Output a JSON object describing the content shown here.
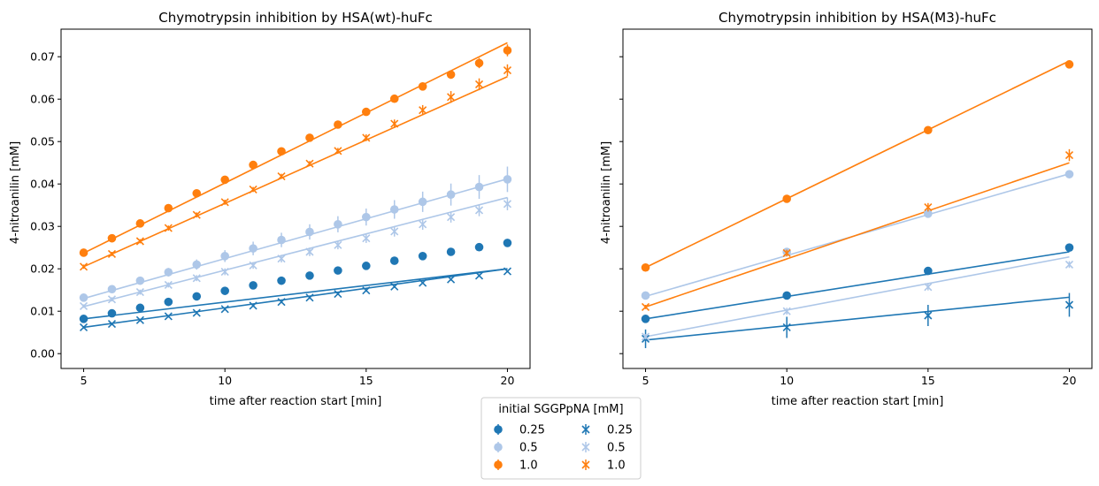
{
  "colors": {
    "c025": "#1f77b4",
    "c05": "#aec7e8",
    "c10": "#ff7f0e"
  },
  "legend": {
    "title": "initial SGGPpNA  [mM]",
    "items": [
      {
        "label": "0.25",
        "marker": "dot",
        "color": "#1f77b4"
      },
      {
        "label": "0.5",
        "marker": "dot",
        "color": "#aec7e8"
      },
      {
        "label": "1.0",
        "marker": "dot",
        "color": "#ff7f0e"
      },
      {
        "label": "0.25",
        "marker": "x",
        "color": "#1f77b4"
      },
      {
        "label": "0.5",
        "marker": "x",
        "color": "#aec7e8"
      },
      {
        "label": "1.0",
        "marker": "x",
        "color": "#ff7f0e"
      }
    ]
  },
  "chart_data": [
    {
      "type": "scatter",
      "title": "Chymotrypsin inhibition by HSA(wt)-huFc",
      "xlabel": "time after reaction start [min]",
      "ylabel": "4-nitroanilin [mM]",
      "xlim": [
        4.2,
        20.8
      ],
      "ylim": [
        -0.0035,
        0.0765
      ],
      "xticks": [
        5,
        10,
        15,
        20
      ],
      "yticks": [
        0.0,
        0.01,
        0.02,
        0.03,
        0.04,
        0.05,
        0.06,
        0.07
      ],
      "ytick_labels": [
        "0.00",
        "0.01",
        "0.02",
        "0.03",
        "0.04",
        "0.05",
        "0.06",
        "0.07"
      ],
      "show_ytick_labels": true,
      "x": [
        5,
        6,
        7,
        8,
        9,
        10,
        11,
        12,
        13,
        14,
        15,
        16,
        17,
        18,
        19,
        20
      ],
      "series": [
        {
          "marker": "dot",
          "color": "#1f77b4",
          "fit": [
            0.0082,
            0.02
          ],
          "values": [
            0.0082,
            0.0095,
            0.0108,
            0.0122,
            0.0135,
            0.0148,
            0.0161,
            0.0172,
            0.0184,
            0.0196,
            0.0207,
            0.0219,
            0.023,
            0.024,
            0.0251,
            0.0261
          ],
          "err": [
            0.0005,
            0.0005,
            0.0005,
            0.0005,
            0.0005,
            0.0005,
            0.0005,
            0.0005,
            0.0005,
            0.0005,
            0.0005,
            0.0005,
            0.0005,
            0.0005,
            0.0005,
            0.0005
          ]
        },
        {
          "marker": "dot",
          "color": "#aec7e8",
          "fit": [
            0.013,
            0.0412
          ],
          "values": [
            0.0132,
            0.0152,
            0.0172,
            0.0192,
            0.021,
            0.023,
            0.0248,
            0.0268,
            0.0287,
            0.0305,
            0.0322,
            0.034,
            0.0358,
            0.0375,
            0.0393,
            0.0411
          ],
          "err": [
            0.0006,
            0.0007,
            0.0008,
            0.001,
            0.0012,
            0.0014,
            0.0016,
            0.0017,
            0.0018,
            0.0019,
            0.002,
            0.0022,
            0.0024,
            0.0026,
            0.0028,
            0.003
          ]
        },
        {
          "marker": "dot",
          "color": "#ff7f0e",
          "fit": [
            0.0237,
            0.0733
          ],
          "values": [
            0.0238,
            0.0272,
            0.0307,
            0.0343,
            0.0378,
            0.041,
            0.0445,
            0.0477,
            0.0509,
            0.054,
            0.057,
            0.0601,
            0.063,
            0.0658,
            0.0685,
            0.0715
          ],
          "err": [
            0.0006,
            0.0006,
            0.0006,
            0.0006,
            0.0006,
            0.0006,
            0.0006,
            0.0006,
            0.0007,
            0.0008,
            0.0008,
            0.0008,
            0.0009,
            0.001,
            0.0012,
            0.0014
          ]
        },
        {
          "marker": "x",
          "color": "#1f77b4",
          "fit": [
            0.0062,
            0.02
          ],
          "values": [
            0.0062,
            0.007,
            0.0079,
            0.0088,
            0.0096,
            0.0105,
            0.0113,
            0.0122,
            0.0132,
            0.0141,
            0.0149,
            0.0158,
            0.0167,
            0.0175,
            0.0184,
            0.0194
          ],
          "err": [
            0.0003,
            0.0003,
            0.0003,
            0.0003,
            0.0003,
            0.0003,
            0.0003,
            0.0003,
            0.0003,
            0.0003,
            0.0003,
            0.0003,
            0.0003,
            0.0003,
            0.0003,
            0.0003
          ]
        },
        {
          "marker": "x",
          "color": "#aec7e8",
          "fit": [
            0.0111,
            0.0368
          ],
          "values": [
            0.0112,
            0.0128,
            0.0145,
            0.0162,
            0.0178,
            0.0193,
            0.0208,
            0.0224,
            0.024,
            0.0256,
            0.0272,
            0.0288,
            0.0305,
            0.0322,
            0.0338,
            0.0353
          ],
          "err": [
            0.0004,
            0.0005,
            0.0006,
            0.0006,
            0.0007,
            0.0008,
            0.0008,
            0.0009,
            0.001,
            0.001,
            0.0011,
            0.0012,
            0.0013,
            0.0013,
            0.0014,
            0.0015
          ]
        },
        {
          "marker": "x",
          "color": "#ff7f0e",
          "fit": [
            0.0205,
            0.0653
          ],
          "values": [
            0.0205,
            0.0235,
            0.0265,
            0.0296,
            0.0327,
            0.0357,
            0.0387,
            0.0418,
            0.0448,
            0.0478,
            0.0509,
            0.0542,
            0.0574,
            0.0605,
            0.0635,
            0.0668
          ],
          "err": [
            0.0005,
            0.0005,
            0.0005,
            0.0006,
            0.0006,
            0.0006,
            0.0006,
            0.0006,
            0.0006,
            0.0007,
            0.0008,
            0.001,
            0.0012,
            0.0014,
            0.0014,
            0.0014
          ]
        }
      ]
    },
    {
      "type": "scatter",
      "title": "Chymotrypsin inhibition by HSA(M3)-huFc",
      "xlabel": "time after reaction start [min]",
      "ylabel": "4-nitroanilin [mM]",
      "xlim": [
        4.2,
        20.8
      ],
      "ylim": [
        -0.0035,
        0.0765
      ],
      "xticks": [
        5,
        10,
        15,
        20
      ],
      "yticks": [
        0.0,
        0.01,
        0.02,
        0.03,
        0.04,
        0.05,
        0.06,
        0.07
      ],
      "show_ytick_labels": false,
      "x": [
        5,
        10,
        15,
        20
      ],
      "series": [
        {
          "marker": "dot",
          "color": "#1f77b4",
          "fit": [
            0.0082,
            0.024
          ],
          "values": [
            0.0082,
            0.0137,
            0.0195,
            0.025
          ],
          "err": [
            0.0003,
            0.0003,
            0.0003,
            0.0004
          ]
        },
        {
          "marker": "dot",
          "color": "#aec7e8",
          "fit": [
            0.0135,
            0.0424
          ],
          "values": [
            0.0137,
            0.024,
            0.033,
            0.0423
          ],
          "err": [
            0.0003,
            0.0004,
            0.0004,
            0.0004
          ]
        },
        {
          "marker": "dot",
          "color": "#ff7f0e",
          "fit": [
            0.0203,
            0.069
          ],
          "values": [
            0.0203,
            0.0365,
            0.0527,
            0.0682
          ],
          "err": [
            0.0003,
            0.0003,
            0.0004,
            0.0004
          ]
        },
        {
          "marker": "x",
          "color": "#1f77b4",
          "fit": [
            0.0032,
            0.0133
          ],
          "values": [
            0.0035,
            0.0062,
            0.009,
            0.0115
          ],
          "err": [
            0.0022,
            0.0025,
            0.0025,
            0.0028
          ]
        },
        {
          "marker": "x",
          "color": "#aec7e8",
          "fit": [
            0.004,
            0.0228
          ],
          "values": [
            0.004,
            0.01,
            0.0157,
            0.021
          ],
          "err": [
            0.0006,
            0.0008,
            0.0008,
            0.0008
          ]
        },
        {
          "marker": "x",
          "color": "#ff7f0e",
          "fit": [
            0.011,
            0.045
          ],
          "values": [
            0.011,
            0.0237,
            0.0345,
            0.0468
          ],
          "err": [
            0.0005,
            0.0008,
            0.001,
            0.0014
          ]
        }
      ]
    }
  ]
}
